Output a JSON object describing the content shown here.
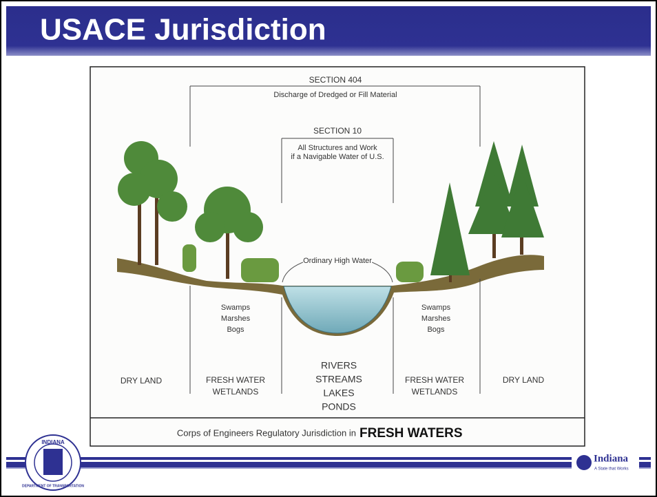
{
  "header": {
    "title": "USACE Jurisdiction"
  },
  "diagram": {
    "section_404": {
      "title": "SECTION 404",
      "description": "Discharge of Dredged or Fill Material"
    },
    "section_10": {
      "title": "SECTION 10",
      "description": [
        "All Structures and Work",
        "if a Navigable Water of U.S."
      ]
    },
    "ordinary_high_water": "Ordinary High Water",
    "zones": [
      {
        "label": [
          "DRY LAND"
        ]
      },
      {
        "label": [
          "FRESH WATER",
          "WETLANDS"
        ],
        "types": [
          "Swamps",
          "Marshes",
          "Bogs"
        ]
      },
      {
        "label": [
          "RIVERS",
          "STREAMS",
          "LAKES",
          "PONDS"
        ]
      },
      {
        "label": [
          "FRESH WATER",
          "WETLANDS"
        ],
        "types": [
          "Swamps",
          "Marshes",
          "Bogs"
        ]
      },
      {
        "label": [
          "DRY LAND"
        ]
      }
    ],
    "caption": {
      "text": "Corps of Engineers Regulatory Jurisdiction in",
      "emphasis": "FRESH WATERS"
    }
  },
  "footer": {
    "left_logo": {
      "text": "INDIANA",
      "ring": "DEPARTMENT OF TRANSPORTATION"
    },
    "right_logo": {
      "name": "Indiana",
      "tagline": "A State that Works"
    }
  }
}
